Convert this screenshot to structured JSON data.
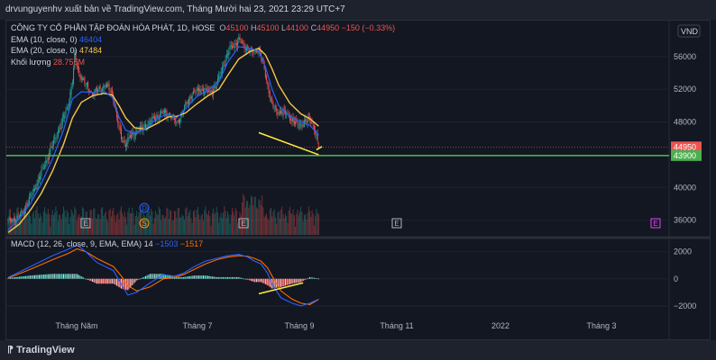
{
  "header": {
    "attribution": "drvunguyenhv xuất bản về TradingView.com, Tháng Mười hai 23, 2021 23:29 UTC+7"
  },
  "legend": {
    "symbol": "CÔNG TY CỔ PHẦN TẬP ĐOÀN HÒA PHÁT, 1D, HOSE",
    "o_label": "O",
    "o": "45100",
    "h_label": "H",
    "h": "45100",
    "l_label": "L",
    "l": "44100",
    "c_label": "C",
    "c": "44950",
    "chg": "−150 (−0.33%)",
    "ema10_label": "EMA (10, close, 0)",
    "ema10": "46404",
    "ema20_label": "EMA (20, close, 0)",
    "ema20": "47484",
    "vol_label": "Khối lượng",
    "vol": "28.755M",
    "macd_label": "MACD (12, 26, close, 9, EMA, EMA)",
    "macd_hist": "14",
    "macd": "−1503",
    "signal": "−1517"
  },
  "currency": "VND",
  "markers": {
    "e": "E",
    "d": "D",
    "s": "S"
  },
  "colors": {
    "up": "#26a69a",
    "down": "#ef5350",
    "ema10": "#2962ff",
    "ema20": "#f7c948",
    "support": "#4caf50",
    "trend": "#ffeb3b",
    "macd": "#2962ff",
    "signal": "#ff6d00",
    "bg": "#131722",
    "grid": "#2a2e39"
  },
  "footer": {
    "brand": "TradingView"
  },
  "chart_data": [
    {
      "type": "candlestick",
      "title": "CÔNG TY CỔ PHẦN TẬP ĐOÀN HÒA PHÁT, 1D, HOSE",
      "price_ticks": [
        "56000",
        "52000",
        "48000",
        "44950",
        "43900",
        "40000",
        "36000"
      ],
      "ylim": [
        34200,
        59500
      ],
      "x_labels": [
        "Tháng Năm",
        "Tháng 7",
        "Tháng 9",
        "Tháng 11",
        "2022",
        "Tháng 3"
      ],
      "last_price": 44950,
      "support_level": 43900,
      "close_path": [
        [
          0,
          36000
        ],
        [
          8,
          36200
        ],
        [
          14,
          37200
        ],
        [
          20,
          38800
        ],
        [
          26,
          40500
        ],
        [
          32,
          42500
        ],
        [
          38,
          44500
        ],
        [
          44,
          46500
        ],
        [
          50,
          48500
        ],
        [
          54,
          50000
        ],
        [
          58,
          53000
        ],
        [
          60,
          56000
        ],
        [
          64,
          54000
        ],
        [
          70,
          52500
        ],
        [
          76,
          51500
        ],
        [
          82,
          52000
        ],
        [
          88,
          52500
        ],
        [
          94,
          51500
        ],
        [
          98,
          48500
        ],
        [
          102,
          46000
        ],
        [
          106,
          45300
        ],
        [
          110,
          46200
        ],
        [
          116,
          46800
        ],
        [
          124,
          47500
        ],
        [
          132,
          48500
        ],
        [
          140,
          49200
        ],
        [
          148,
          48700
        ],
        [
          152,
          47800
        ],
        [
          158,
          49500
        ],
        [
          166,
          51500
        ],
        [
          174,
          52000
        ],
        [
          182,
          51600
        ],
        [
          188,
          52500
        ],
        [
          194,
          55000
        ],
        [
          200,
          57000
        ],
        [
          208,
          58000
        ],
        [
          214,
          57200
        ],
        [
          220,
          56500
        ],
        [
          226,
          57000
        ],
        [
          230,
          55000
        ],
        [
          234,
          52500
        ],
        [
          238,
          50000
        ],
        [
          242,
          49300
        ],
        [
          248,
          49200
        ],
        [
          254,
          48600
        ],
        [
          260,
          47600
        ],
        [
          266,
          47800
        ],
        [
          272,
          48400
        ],
        [
          276,
          47200
        ],
        [
          280,
          44950
        ]
      ],
      "ema10": [
        [
          0,
          34800
        ],
        [
          10,
          36200
        ],
        [
          20,
          38000
        ],
        [
          30,
          40500
        ],
        [
          40,
          43500
        ],
        [
          50,
          47000
        ],
        [
          58,
          50800
        ],
        [
          66,
          51700
        ],
        [
          76,
          51600
        ],
        [
          86,
          51800
        ],
        [
          94,
          51000
        ],
        [
          100,
          48600
        ],
        [
          106,
          47000
        ],
        [
          114,
          46600
        ],
        [
          124,
          47200
        ],
        [
          134,
          48400
        ],
        [
          144,
          49000
        ],
        [
          152,
          48500
        ],
        [
          160,
          49600
        ],
        [
          170,
          51100
        ],
        [
          180,
          51900
        ],
        [
          190,
          52900
        ],
        [
          198,
          55300
        ],
        [
          208,
          57200
        ],
        [
          218,
          57000
        ],
        [
          226,
          56700
        ],
        [
          232,
          54700
        ],
        [
          238,
          52000
        ],
        [
          244,
          50000
        ],
        [
          254,
          48700
        ],
        [
          264,
          48000
        ],
        [
          272,
          47600
        ],
        [
          280,
          46404
        ]
      ],
      "ema20": [
        [
          0,
          34500
        ],
        [
          10,
          35500
        ],
        [
          20,
          37200
        ],
        [
          30,
          39300
        ],
        [
          40,
          42000
        ],
        [
          50,
          45300
        ],
        [
          58,
          48500
        ],
        [
          66,
          50400
        ],
        [
          76,
          51200
        ],
        [
          86,
          51500
        ],
        [
          94,
          51300
        ],
        [
          100,
          50000
        ],
        [
          106,
          48500
        ],
        [
          114,
          47300
        ],
        [
          124,
          47100
        ],
        [
          134,
          47800
        ],
        [
          144,
          48600
        ],
        [
          152,
          48700
        ],
        [
          160,
          49100
        ],
        [
          170,
          50200
        ],
        [
          180,
          51200
        ],
        [
          190,
          52000
        ],
        [
          198,
          53700
        ],
        [
          208,
          55700
        ],
        [
          218,
          56600
        ],
        [
          226,
          57000
        ],
        [
          232,
          56200
        ],
        [
          238,
          54500
        ],
        [
          244,
          52500
        ],
        [
          254,
          50300
        ],
        [
          264,
          49000
        ],
        [
          272,
          48400
        ],
        [
          280,
          47484
        ]
      ],
      "trendlines": [
        {
          "from": [
            226,
            46700
          ],
          "to": [
            280,
            44000
          ]
        },
        {
          "from": [
            278,
            44600
          ],
          "to": [
            283,
            45000
          ]
        }
      ],
      "volume_range": [
        0,
        45000000
      ]
    },
    {
      "type": "line",
      "title": "MACD (12, 26, close, 9, EMA, EMA)",
      "y_ticks": [
        "2000",
        "0",
        "−2000"
      ],
      "ylim": [
        -2600,
        2700
      ],
      "series": [
        {
          "name": "MACD",
          "values": [
            [
              0,
              100
            ],
            [
              20,
              900
            ],
            [
              40,
              1700
            ],
            [
              55,
              2200
            ],
            [
              62,
              2500
            ],
            [
              70,
              2000
            ],
            [
              80,
              1200
            ],
            [
              95,
              600
            ],
            [
              102,
              -400
            ],
            [
              108,
              -1200
            ],
            [
              116,
              -1000
            ],
            [
              128,
              -300
            ],
            [
              140,
              300
            ],
            [
              150,
              200
            ],
            [
              158,
              400
            ],
            [
              168,
              900
            ],
            [
              178,
              1300
            ],
            [
              188,
              1500
            ],
            [
              198,
              1700
            ],
            [
              208,
              1800
            ],
            [
              216,
              1600
            ],
            [
              222,
              1300
            ],
            [
              228,
              1100
            ],
            [
              234,
              400
            ],
            [
              238,
              -400
            ],
            [
              246,
              -1400
            ],
            [
              256,
              -1800
            ],
            [
              264,
              -2000
            ],
            [
              272,
              -1800
            ],
            [
              280,
              -1503
            ]
          ]
        },
        {
          "name": "Signal",
          "values": [
            [
              0,
              50
            ],
            [
              20,
              700
            ],
            [
              40,
              1400
            ],
            [
              55,
              1900
            ],
            [
              62,
              2200
            ],
            [
              70,
              2000
            ],
            [
              80,
              1500
            ],
            [
              95,
              900
            ],
            [
              102,
              200
            ],
            [
              108,
              -500
            ],
            [
              116,
              -900
            ],
            [
              128,
              -600
            ],
            [
              140,
              0
            ],
            [
              150,
              100
            ],
            [
              158,
              300
            ],
            [
              168,
              700
            ],
            [
              178,
              1100
            ],
            [
              188,
              1400
            ],
            [
              198,
              1600
            ],
            [
              208,
              1700
            ],
            [
              216,
              1650
            ],
            [
              222,
              1500
            ],
            [
              228,
              1300
            ],
            [
              234,
              800
            ],
            [
              238,
              200
            ],
            [
              246,
              -900
            ],
            [
              256,
              -1500
            ],
            [
              264,
              -1800
            ],
            [
              272,
              -1900
            ],
            [
              280,
              -1517
            ]
          ]
        }
      ],
      "trendline": {
        "from": [
          226,
          -1100
        ],
        "to": [
          266,
          -300
        ]
      }
    }
  ]
}
